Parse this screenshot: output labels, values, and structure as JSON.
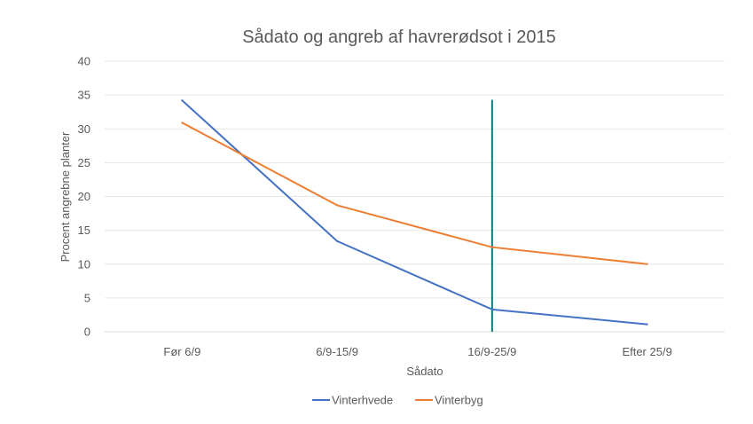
{
  "chart_data": {
    "type": "line",
    "title": "Sådato og angreb af havrerødsot i 2015",
    "xlabel": "Sådato",
    "ylabel": "Procent angrebne planter",
    "categories": [
      "Før 6/9",
      "6/9-15/9",
      "16/9-25/9",
      "Efter 25/9"
    ],
    "ylim": [
      0,
      40
    ],
    "yticks": [
      0,
      5,
      10,
      15,
      20,
      25,
      30,
      35,
      40
    ],
    "grid": true,
    "legend_position": "bottom",
    "series": [
      {
        "name": "Vinterhvede",
        "color": "#4472C4",
        "values": [
          34.2,
          13.4,
          3.3,
          1.1
        ]
      },
      {
        "name": "Vinterbyg",
        "color": "#ED7D31",
        "values": [
          30.9,
          18.7,
          12.5,
          10.0
        ]
      }
    ],
    "reference_line": {
      "category": "16/9-25/9",
      "y_from": 0,
      "y_to": 34.3,
      "color": "#00827F"
    }
  }
}
